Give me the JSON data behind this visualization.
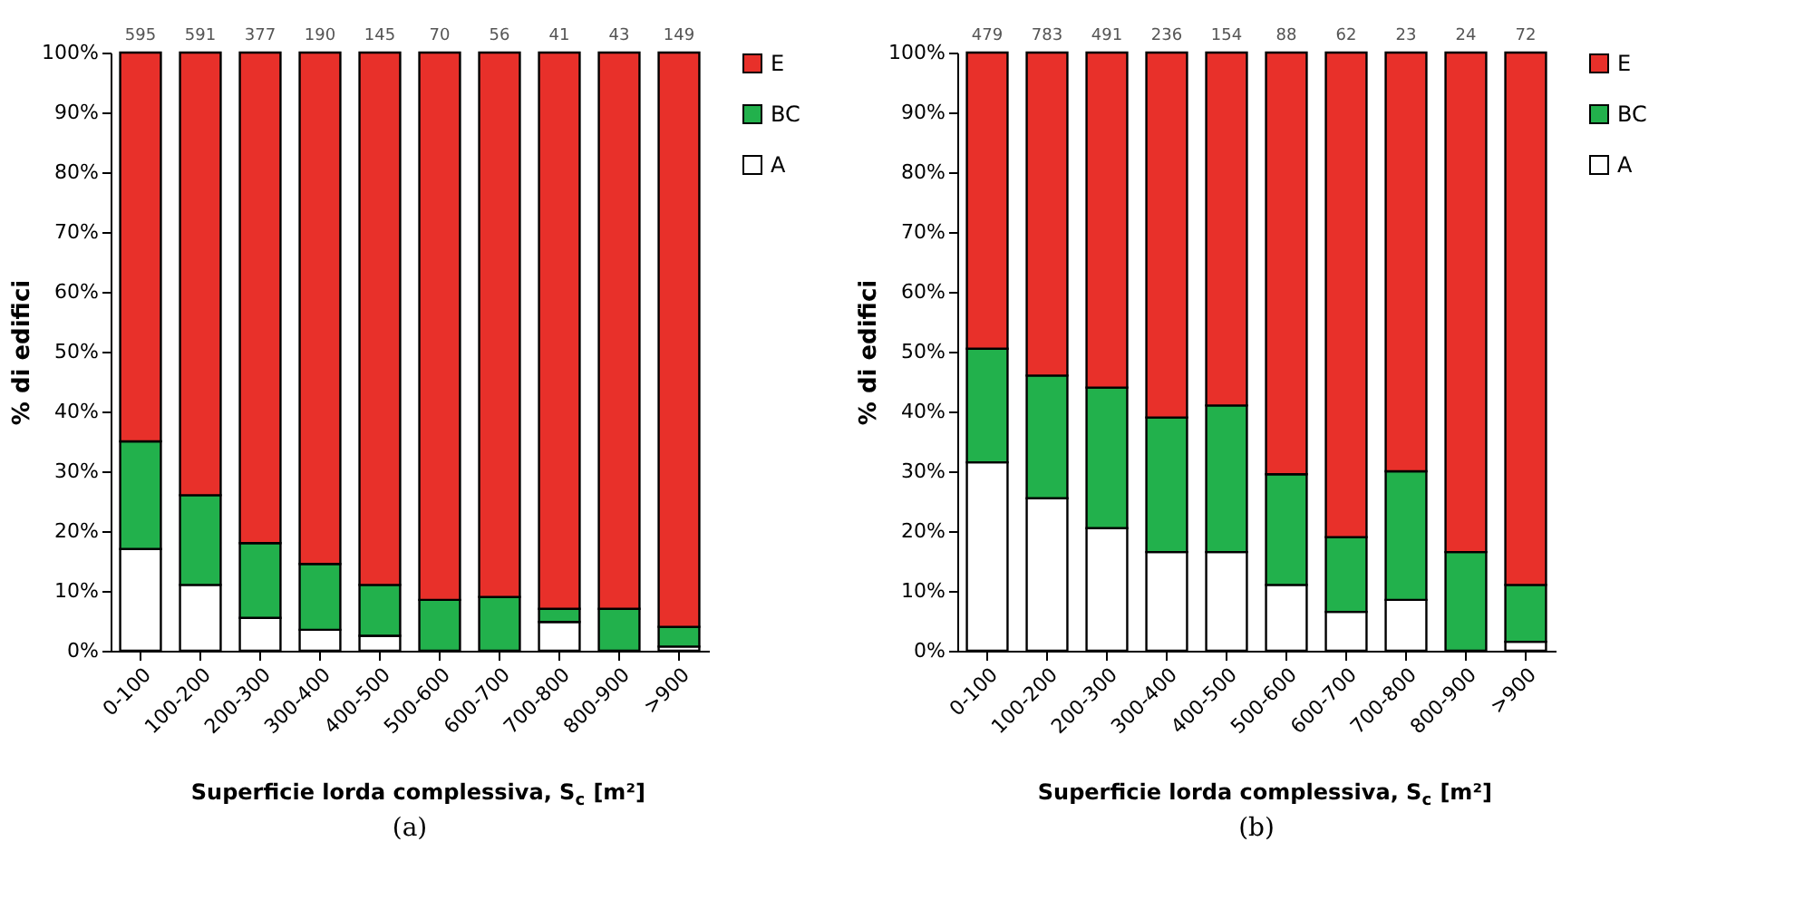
{
  "chart_data": [
    {
      "type": "bar",
      "stacked": true,
      "xlabel": "Superficie lorda complessiva, S$_{c}$ [m²]",
      "ylabel": "% di edifici",
      "legend": "right",
      "grid": false,
      "categories": [
        "0-100",
        "100-200",
        "200-300",
        "300-400",
        "400-500",
        "500-600",
        "600-700",
        "700-800",
        "800-900",
        ">900"
      ],
      "series": [
        {
          "name": "A",
          "color": "#ffffff",
          "values": [
            17,
            11,
            5.5,
            3.5,
            2.5,
            0,
            0,
            4.8,
            0,
            0.7
          ]
        },
        {
          "name": "BC",
          "color": "#22b14c",
          "values": [
            18,
            15,
            12.5,
            11,
            8.5,
            8.5,
            9,
            2.2,
            7,
            3.3
          ]
        },
        {
          "name": "E",
          "color": "#e8302a",
          "values": [
            65,
            74,
            82,
            85.5,
            89,
            91.5,
            91,
            93,
            93,
            96
          ]
        }
      ],
      "annotations": [
        "(a)",
        {
          "text": "595",
          "x": "0-100",
          "y": 100
        },
        {
          "text": "591",
          "x": "100-200",
          "y": 100
        },
        {
          "text": "377",
          "x": "200-300",
          "y": 100
        },
        {
          "text": "190",
          "x": "300-400",
          "y": 100
        },
        {
          "text": "145",
          "x": "400-500",
          "y": 100
        },
        {
          "text": "70",
          "x": "500-600",
          "y": 100
        },
        {
          "text": "56",
          "x": "600-700",
          "y": 100
        },
        {
          "text": "41",
          "x": "700-800",
          "y": 100
        },
        {
          "text": "43",
          "x": "800-900",
          "y": 100
        },
        {
          "text": "149",
          "x": ">900",
          "y": 100
        }
      ],
      "ylim": [
        0,
        100
      ],
      "yticks": [
        {
          "value": 0,
          "label": "0%"
        },
        {
          "value": 10,
          "label": "10%"
        },
        {
          "value": 20,
          "label": "20%"
        },
        {
          "value": 30,
          "label": "30%"
        },
        {
          "value": 40,
          "label": "40%"
        },
        {
          "value": 50,
          "label": "50%"
        },
        {
          "value": 60,
          "label": "60%"
        },
        {
          "value": 70,
          "label": "70%"
        },
        {
          "value": 80,
          "label": "80%"
        },
        {
          "value": 90,
          "label": "90%"
        },
        {
          "value": 100,
          "label": "100%"
        }
      ]
    },
    {
      "type": "bar",
      "stacked": true,
      "xlabel": "Superficie lorda complessiva, S$_{c}$ [m²]",
      "ylabel": "% di edifici",
      "legend": "right",
      "grid": false,
      "categories": [
        "0-100",
        "100-200",
        "200-300",
        "300-400",
        "400-500",
        "500-600",
        "600-700",
        "700-800",
        "800-900",
        ">900"
      ],
      "series": [
        {
          "name": "A",
          "color": "#ffffff",
          "values": [
            31.5,
            25.5,
            20.5,
            16.5,
            16.5,
            11,
            6.5,
            8.5,
            0,
            1.5
          ]
        },
        {
          "name": "BC",
          "color": "#22b14c",
          "values": [
            19,
            20.5,
            23.5,
            22.5,
            24.5,
            18.5,
            12.5,
            21.5,
            16.5,
            9.5
          ]
        },
        {
          "name": "E",
          "color": "#e8302a",
          "values": [
            49.5,
            54,
            56,
            61,
            59,
            70.5,
            81,
            70,
            83.5,
            89
          ]
        }
      ],
      "annotations": [
        "(b)",
        {
          "text": "479",
          "x": "0-100",
          "y": 100
        },
        {
          "text": "783",
          "x": "100-200",
          "y": 100
        },
        {
          "text": "491",
          "x": "200-300",
          "y": 100
        },
        {
          "text": "236",
          "x": "300-400",
          "y": 100
        },
        {
          "text": "154",
          "x": "400-500",
          "y": 100
        },
        {
          "text": "88",
          "x": "500-600",
          "y": 100
        },
        {
          "text": "62",
          "x": "600-700",
          "y": 100
        },
        {
          "text": "23",
          "x": "700-800",
          "y": 100
        },
        {
          "text": "24",
          "x": "800-900",
          "y": 100
        },
        {
          "text": "72",
          "x": ">900",
          "y": 100
        }
      ],
      "ylim": [
        0,
        100
      ],
      "yticks": [
        {
          "value": 0,
          "label": "0%"
        },
        {
          "value": 10,
          "label": "10%"
        },
        {
          "value": 20,
          "label": "20%"
        },
        {
          "value": 30,
          "label": "30%"
        },
        {
          "value": 40,
          "label": "40%"
        },
        {
          "value": 50,
          "label": "50%"
        },
        {
          "value": 60,
          "label": "60%"
        },
        {
          "value": 70,
          "label": "70%"
        },
        {
          "value": 80,
          "label": "80%"
        },
        {
          "value": 90,
          "label": "90%"
        },
        {
          "value": 100,
          "label": "100%"
        }
      ]
    }
  ]
}
